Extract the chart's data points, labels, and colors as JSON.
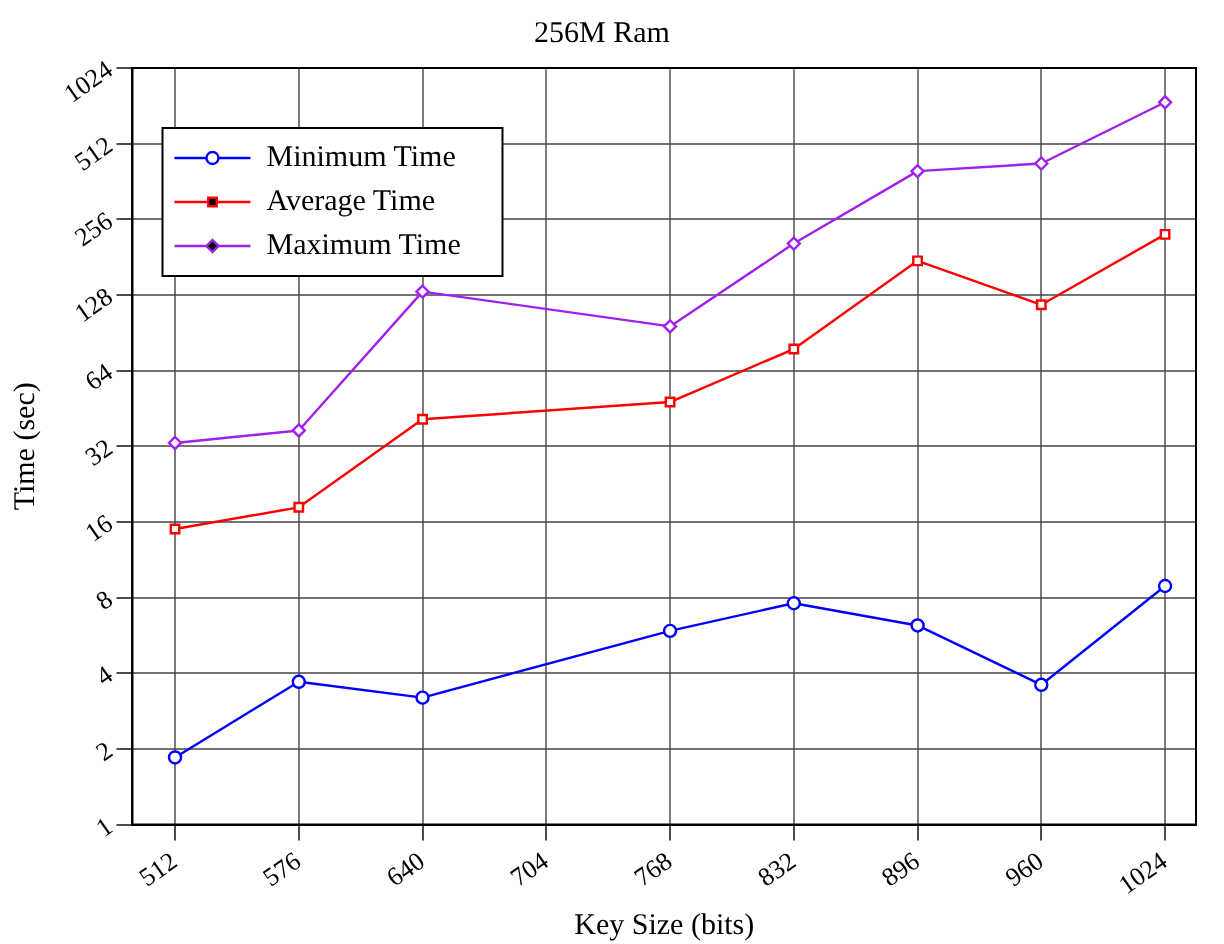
{
  "chart_data": {
    "type": "line",
    "title": "256M Ram",
    "xlabel": "Key Size (bits)",
    "ylabel": "Time (sec)",
    "x": [
      512,
      576,
      640,
      768,
      832,
      896,
      960,
      1024
    ],
    "series": [
      {
        "name": "Minimum Time",
        "color": "#0000ff",
        "marker": "circle",
        "values": [
          1.85,
          3.7,
          3.2,
          5.9,
          7.6,
          6.2,
          3.6,
          8.9
        ]
      },
      {
        "name": "Average Time",
        "color": "#ff0000",
        "marker": "square",
        "values": [
          15,
          18.3,
          41,
          48,
          78,
          175,
          117,
          223
        ]
      },
      {
        "name": "Maximum Time",
        "color": "#a020f0",
        "marker": "diamond",
        "values": [
          33,
          37,
          132,
          96,
          205,
          398,
          427,
          748
        ]
      }
    ],
    "xlim": [
      490,
      1040
    ],
    "xticks": [
      512,
      576,
      640,
      704,
      768,
      832,
      896,
      960,
      1024
    ],
    "ylim": [
      1,
      1024
    ],
    "yticks": [
      1,
      2,
      4,
      8,
      16,
      32,
      64,
      128,
      256,
      512,
      1024
    ],
    "log": "y",
    "grid": true,
    "legend": "top left",
    "line_style": "solid"
  }
}
